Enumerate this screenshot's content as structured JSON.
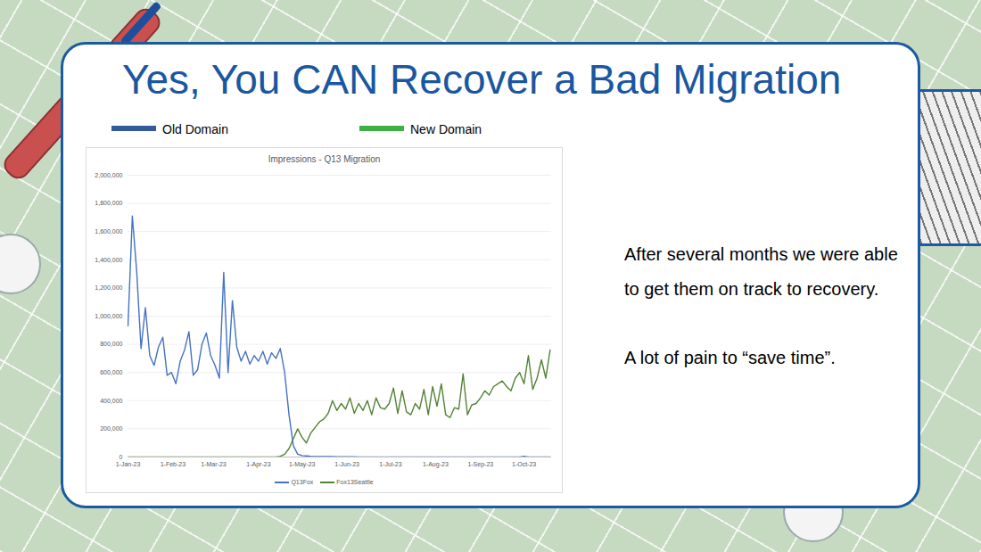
{
  "slide": {
    "title": "Yes, You CAN Recover a Bad Migration",
    "key": [
      {
        "label": "Old Domain",
        "color": "#335a9b"
      },
      {
        "label": "New Domain",
        "color": "#3cb043"
      }
    ],
    "paragraphs": [
      "After several months we were able to get them on track to recovery.",
      "A lot of pain to “save time”."
    ]
  },
  "chart_data": {
    "type": "line",
    "title": "Impressions - Q13 Migration",
    "x": [
      "2023-01-01",
      "2023-01-04",
      "2023-01-07",
      "2023-01-10",
      "2023-01-13",
      "2023-01-16",
      "2023-01-19",
      "2023-01-22",
      "2023-01-25",
      "2023-01-28",
      "2023-01-31",
      "2023-02-03",
      "2023-02-06",
      "2023-02-09",
      "2023-02-12",
      "2023-02-15",
      "2023-02-18",
      "2023-02-21",
      "2023-02-24",
      "2023-02-27",
      "2023-03-02",
      "2023-03-05",
      "2023-03-08",
      "2023-03-11",
      "2023-03-14",
      "2023-03-17",
      "2023-03-20",
      "2023-03-23",
      "2023-03-26",
      "2023-03-29",
      "2023-04-01",
      "2023-04-04",
      "2023-04-07",
      "2023-04-10",
      "2023-04-13",
      "2023-04-16",
      "2023-04-19",
      "2023-04-22",
      "2023-04-25",
      "2023-04-28",
      "2023-05-01",
      "2023-05-04",
      "2023-05-07",
      "2023-05-10",
      "2023-05-13",
      "2023-05-16",
      "2023-05-19",
      "2023-05-22",
      "2023-05-25",
      "2023-05-28",
      "2023-05-31",
      "2023-06-03",
      "2023-06-06",
      "2023-06-09",
      "2023-06-12",
      "2023-06-15",
      "2023-06-18",
      "2023-06-21",
      "2023-06-24",
      "2023-06-27",
      "2023-06-30",
      "2023-07-03",
      "2023-07-06",
      "2023-07-09",
      "2023-07-12",
      "2023-07-15",
      "2023-07-18",
      "2023-07-21",
      "2023-07-24",
      "2023-07-27",
      "2023-07-30",
      "2023-08-02",
      "2023-08-05",
      "2023-08-08",
      "2023-08-11",
      "2023-08-14",
      "2023-08-17",
      "2023-08-20",
      "2023-08-23",
      "2023-08-26",
      "2023-08-29",
      "2023-09-01",
      "2023-09-04",
      "2023-09-07",
      "2023-09-10",
      "2023-09-13",
      "2023-09-16",
      "2023-09-19",
      "2023-09-22",
      "2023-09-25",
      "2023-09-28",
      "2023-10-01",
      "2023-10-04",
      "2023-10-07",
      "2023-10-10",
      "2023-10-13",
      "2023-10-16",
      "2023-10-19"
    ],
    "series": [
      {
        "name": "Q13Fox",
        "color": "#4472c4",
        "values": [
          930000,
          1710000,
          1320000,
          770000,
          1060000,
          720000,
          650000,
          780000,
          850000,
          580000,
          600000,
          520000,
          680000,
          760000,
          890000,
          580000,
          620000,
          800000,
          880000,
          720000,
          650000,
          560000,
          1310000,
          600000,
          1110000,
          780000,
          680000,
          750000,
          660000,
          720000,
          680000,
          750000,
          660000,
          740000,
          700000,
          770000,
          600000,
          300000,
          80000,
          20000,
          10000,
          8000,
          5000,
          4000,
          3000,
          3000,
          3000,
          3000,
          2000,
          2000,
          2000,
          2000,
          2000,
          1000,
          1000,
          1000,
          1000,
          1000,
          1000,
          1000,
          1000,
          1000,
          1000,
          0,
          0,
          0,
          0,
          0,
          0,
          0,
          0,
          0,
          0,
          0,
          0,
          0,
          0,
          0,
          0,
          0,
          0,
          0,
          0,
          0,
          0,
          0,
          0,
          0,
          0,
          0,
          0,
          5000,
          0,
          0,
          0,
          0,
          0,
          0
        ]
      },
      {
        "name": "Fox13Seattle",
        "color": "#548235",
        "values": [
          0,
          0,
          0,
          0,
          0,
          0,
          0,
          0,
          0,
          0,
          0,
          0,
          0,
          0,
          0,
          0,
          0,
          0,
          0,
          0,
          0,
          0,
          0,
          0,
          0,
          0,
          0,
          0,
          0,
          0,
          0,
          0,
          0,
          0,
          0,
          5000,
          20000,
          60000,
          130000,
          200000,
          140000,
          100000,
          170000,
          210000,
          250000,
          270000,
          310000,
          400000,
          330000,
          380000,
          340000,
          420000,
          310000,
          380000,
          330000,
          400000,
          300000,
          420000,
          350000,
          340000,
          380000,
          490000,
          310000,
          470000,
          320000,
          300000,
          380000,
          340000,
          480000,
          300000,
          500000,
          360000,
          520000,
          300000,
          280000,
          350000,
          340000,
          590000,
          300000,
          370000,
          380000,
          420000,
          470000,
          440000,
          500000,
          520000,
          540000,
          500000,
          470000,
          560000,
          600000,
          520000,
          720000,
          480000,
          560000,
          690000,
          560000,
          760000
        ]
      }
    ],
    "xlim": [
      "2023-01-01",
      "2023-10-20"
    ],
    "xticks": [
      {
        "value": "2023-01-01",
        "label": "1-Jan-23"
      },
      {
        "value": "2023-02-01",
        "label": "1-Feb-23"
      },
      {
        "value": "2023-03-01",
        "label": "1-Mar-23"
      },
      {
        "value": "2023-04-01",
        "label": "1-Apr-23"
      },
      {
        "value": "2023-05-01",
        "label": "1-May-23"
      },
      {
        "value": "2023-06-01",
        "label": "1-Jun-23"
      },
      {
        "value": "2023-07-01",
        "label": "1-Jul-23"
      },
      {
        "value": "2023-08-01",
        "label": "1-Aug-23"
      },
      {
        "value": "2023-09-01",
        "label": "1-Sep-23"
      },
      {
        "value": "2023-10-01",
        "label": "1-Oct-23"
      }
    ],
    "ylim": [
      0,
      2000000
    ],
    "yticks": [
      0,
      {
        "value": 200000,
        "label": "200,000"
      },
      {
        "value": 400000,
        "label": "400,000"
      },
      {
        "value": 600000,
        "label": "600,000"
      },
      {
        "value": 800000,
        "label": "800,000"
      },
      {
        "value": 1000000,
        "label": "1,000,000"
      },
      {
        "value": 1200000,
        "label": "1,200,000"
      },
      {
        "value": 1400000,
        "label": "1,400,000"
      },
      {
        "value": 1600000,
        "label": "1,600,000"
      },
      {
        "value": 1800000,
        "label": "1,800,000"
      },
      {
        "value": 2000000,
        "label": "2,000,000"
      }
    ],
    "grid": true,
    "legend": "bottom"
  }
}
